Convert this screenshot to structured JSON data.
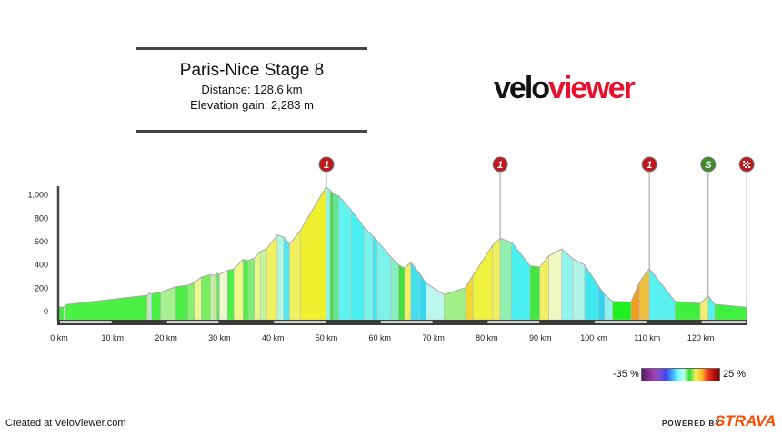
{
  "header": {
    "title": "Paris-Nice Stage 8",
    "distance": "Distance: 128.6 km",
    "elevation_gain": "Elevation gain: 2,283 m"
  },
  "logo": {
    "part1": "velo",
    "part2": "viewer",
    "colors": {
      "velo": "#111111",
      "viewer": "#e8112d"
    }
  },
  "chart_data": {
    "type": "area",
    "title": "",
    "xlabel": "",
    "ylabel": "",
    "xlim": [
      0,
      128.6
    ],
    "ylim": [
      0,
      1000
    ],
    "x_ticks": [
      "0 km",
      "10 km",
      "20 km",
      "30 km",
      "40 km",
      "50 km",
      "60 km",
      "70 km",
      "80 km",
      "90 km",
      "100 km",
      "110 km",
      "120 km"
    ],
    "x_tick_values": [
      0,
      10,
      20,
      30,
      40,
      50,
      60,
      70,
      80,
      90,
      100,
      110,
      120
    ],
    "y_ticks": [
      "0",
      "200",
      "400",
      "600",
      "800",
      "1,000"
    ],
    "y_tick_values": [
      0,
      200,
      400,
      600,
      800,
      1000
    ],
    "grid": false,
    "profile": [
      {
        "km": 0.0,
        "elev": 31,
        "color": "#44ee44"
      },
      {
        "km": 0.9,
        "elev": 31,
        "color": "#f0f8c0"
      },
      {
        "km": 1.2,
        "elev": 52,
        "color": "#4af044"
      },
      {
        "km": 16.5,
        "elev": 132,
        "color": "#e8f8a0"
      },
      {
        "km": 16.8,
        "elev": 150,
        "color": "#b0f0e0"
      },
      {
        "km": 17.3,
        "elev": 145,
        "color": "#4af044"
      },
      {
        "km": 19.0,
        "elev": 158,
        "color": "#a8f090"
      },
      {
        "km": 21.8,
        "elev": 205,
        "color": "#4aee44"
      },
      {
        "km": 24.1,
        "elev": 218,
        "color": "#88ee70"
      },
      {
        "km": 25.3,
        "elev": 242,
        "color": "#eef890"
      },
      {
        "km": 26.6,
        "elev": 288,
        "color": "#78ee60"
      },
      {
        "km": 28.3,
        "elev": 309,
        "color": "#c0f4a0"
      },
      {
        "km": 29.1,
        "elev": 302,
        "color": "#f0f888"
      },
      {
        "km": 29.5,
        "elev": 320,
        "color": "#58ee50"
      },
      {
        "km": 30.0,
        "elev": 312,
        "color": "#f0f8d0"
      },
      {
        "km": 31.5,
        "elev": 345,
        "color": "#50ee48"
      },
      {
        "km": 32.7,
        "elev": 358,
        "color": "#f0f888"
      },
      {
        "km": 34.4,
        "elev": 439,
        "color": "#50ee48"
      },
      {
        "km": 35.4,
        "elev": 431,
        "color": "#80ee70"
      },
      {
        "km": 36.5,
        "elev": 449,
        "color": "#e8f888"
      },
      {
        "km": 37.7,
        "elev": 509,
        "color": "#c0f4a0"
      },
      {
        "km": 38.8,
        "elev": 530,
        "color": "#f0f060"
      },
      {
        "km": 40.8,
        "elev": 649,
        "color": "#b0f8e0"
      },
      {
        "km": 42.0,
        "elev": 631,
        "color": "#50e8f0"
      },
      {
        "km": 43.1,
        "elev": 569,
        "color": "#f0f060"
      },
      {
        "km": 45.1,
        "elev": 686,
        "color": "#f0f030"
      },
      {
        "km": 49.9,
        "elev": 1060,
        "color": "#90f4e0"
      },
      {
        "km": 50.7,
        "elev": 1034,
        "color": "#40e040"
      },
      {
        "km": 51.3,
        "elev": 1003,
        "color": "#60e890"
      },
      {
        "km": 52.3,
        "elev": 985,
        "color": "#60f4f0"
      },
      {
        "km": 54.7,
        "elev": 860,
        "color": "#48f0f0"
      },
      {
        "km": 57.0,
        "elev": 717,
        "color": "#78f4ec"
      },
      {
        "km": 58.7,
        "elev": 639,
        "color": "#40e8f0"
      },
      {
        "km": 59.5,
        "elev": 600,
        "color": "#7cf2ea"
      },
      {
        "km": 62.1,
        "elev": 457,
        "color": "#88f0c0"
      },
      {
        "km": 63.5,
        "elev": 392,
        "color": "#40e040"
      },
      {
        "km": 64.6,
        "elev": 366,
        "color": "#f0f060"
      },
      {
        "km": 65.8,
        "elev": 413,
        "color": "#40e0f0"
      },
      {
        "km": 67.5,
        "elev": 314,
        "color": "#30d8f0"
      },
      {
        "km": 68.6,
        "elev": 236,
        "color": "#bcf6ee"
      },
      {
        "km": 72.0,
        "elev": 138,
        "color": "#a0f088"
      },
      {
        "km": 76.0,
        "elev": 197,
        "color": "#f0d830"
      },
      {
        "km": 77.4,
        "elev": 302,
        "color": "#f0f040"
      },
      {
        "km": 81.1,
        "elev": 561,
        "color": "#f0f060"
      },
      {
        "km": 82.5,
        "elev": 621,
        "color": "#90f0b0"
      },
      {
        "km": 84.6,
        "elev": 587,
        "color": "#48f0f0"
      },
      {
        "km": 88.1,
        "elev": 384,
        "color": "#40e840"
      },
      {
        "km": 89.9,
        "elev": 374,
        "color": "#f0f060"
      },
      {
        "km": 91.6,
        "elev": 470,
        "color": "#eef8c0"
      },
      {
        "km": 94.0,
        "elev": 530,
        "color": "#90f4ec"
      },
      {
        "km": 96.1,
        "elev": 444,
        "color": "#b0f4e8"
      },
      {
        "km": 98.3,
        "elev": 392,
        "color": "#40e8f0"
      },
      {
        "km": 100.9,
        "elev": 210,
        "color": "#30d0f0"
      },
      {
        "km": 102.0,
        "elev": 140,
        "color": "#90f0f0"
      },
      {
        "km": 103.5,
        "elev": 80,
        "color": "#20f020"
      },
      {
        "km": 107.0,
        "elev": 75,
        "color": "#f0a020"
      },
      {
        "km": 108.6,
        "elev": 249,
        "color": "#f0c040"
      },
      {
        "km": 110.4,
        "elev": 361,
        "color": "#58f0f0"
      },
      {
        "km": 115.2,
        "elev": 80,
        "color": "#40f040"
      },
      {
        "km": 119.9,
        "elev": 62,
        "color": "#f0f070"
      },
      {
        "km": 121.4,
        "elev": 127,
        "color": "#58f0f0"
      },
      {
        "km": 122.6,
        "elev": 55,
        "color": "#40f040"
      },
      {
        "km": 128.6,
        "elev": 29,
        "color": "#40f040"
      }
    ],
    "markers": [
      {
        "km": 50.0,
        "label": "1",
        "type": "climb-cat-1",
        "color": "#c0181c"
      },
      {
        "km": 82.5,
        "label": "1",
        "type": "climb-cat-1",
        "color": "#c0181c"
      },
      {
        "km": 110.4,
        "label": "1",
        "type": "climb-cat-1",
        "color": "#c0181c"
      },
      {
        "km": 121.4,
        "label": "S",
        "type": "sprint",
        "color": "#3f8a2a"
      },
      {
        "km": 128.6,
        "label": "",
        "type": "finish",
        "color": "#c0181c"
      }
    ]
  },
  "legend": {
    "min_label": "-35 %",
    "max_label": "25 %"
  },
  "footer": {
    "created": "Created at VeloViewer.com",
    "powered_by": "POWERED BY",
    "strava": "STRAVA"
  }
}
